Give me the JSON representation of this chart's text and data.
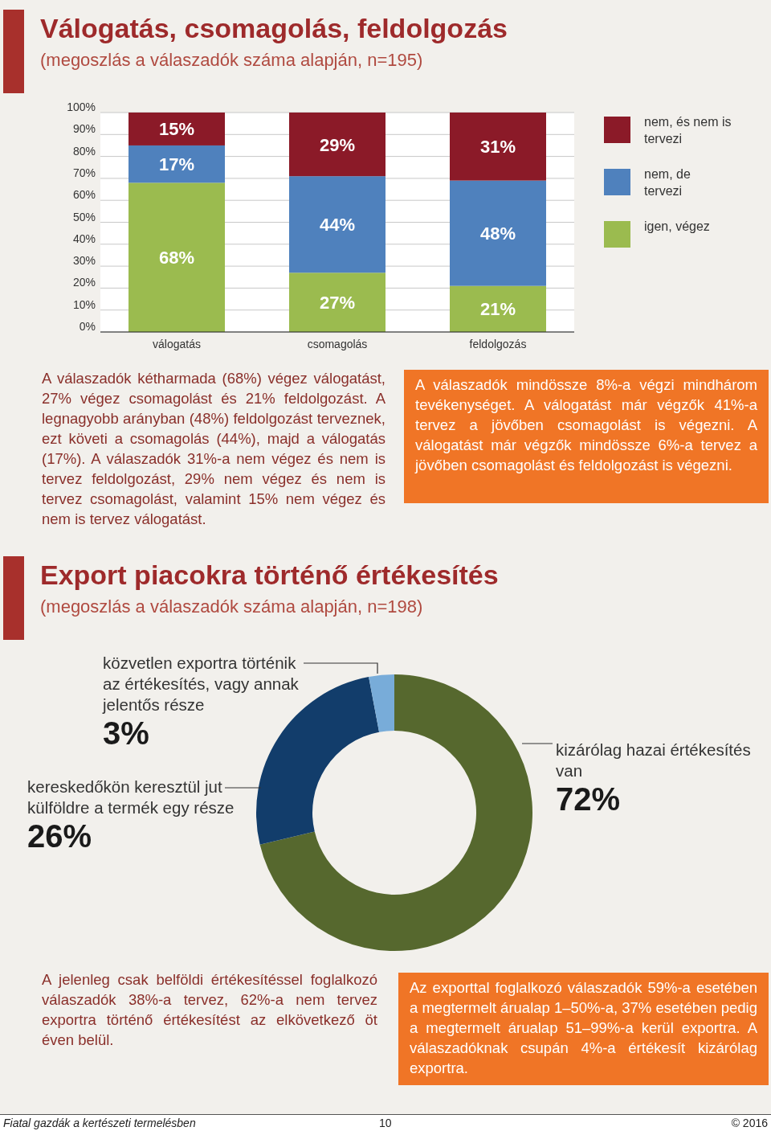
{
  "chart_data": [
    {
      "type": "bar",
      "title": "Válogatás, csomagolás, feldolgozás",
      "subtitle": "(megoszlás a válaszadók száma alapján, n=195)",
      "categories": [
        "válogatás",
        "csomagolás",
        "feldolgozás"
      ],
      "stacked": true,
      "series": [
        {
          "name": "igen, végez",
          "color": "#9bbb4f",
          "values": [
            68,
            27,
            21
          ],
          "value_labels": [
            "68%",
            "27%",
            "21%"
          ]
        },
        {
          "name": "nem, de tervezi",
          "color": "#4f81bd",
          "values": [
            17,
            44,
            48
          ],
          "value_labels": [
            "17%",
            "44%",
            "48%"
          ]
        },
        {
          "name": "nem, és nem is tervezi",
          "color": "#8b1a28",
          "values": [
            15,
            29,
            31
          ],
          "value_labels": [
            "15%",
            "29%",
            "31%"
          ]
        }
      ],
      "ylim": [
        0,
        100
      ],
      "yticks": [
        {
          "value": 0,
          "label": "0%"
        },
        {
          "value": 10,
          "label": "10%"
        },
        {
          "value": 20,
          "label": "20%"
        },
        {
          "value": 30,
          "label": "30%"
        },
        {
          "value": 40,
          "label": "40%"
        },
        {
          "value": 50,
          "label": "50%"
        },
        {
          "value": 60,
          "label": "60%"
        },
        {
          "value": 70,
          "label": "70%"
        },
        {
          "value": 80,
          "label": "80%"
        },
        {
          "value": 90,
          "label": "90%"
        },
        {
          "value": 100,
          "label": "100%"
        }
      ],
      "grid": "y",
      "legend": "right",
      "annotations": [
        "A válaszadók kétharmada (68%) végez válogatást, 27% végez csomagolást és 21% feldolgozást. A legnagyobb arányban (48%) feldolgozást terveznek, ezt követi a csomagolás (44%), majd a válogatás (17%). A válaszadók 31%-a nem végez és nem is tervez feldolgozást, 29% nem végez és nem is tervez csomagolást, valamint 15% nem végez és nem is tervez válogatást.",
        "A válaszadók mindössze 8%-a végzi mindhárom tevékenységet. A válogatást már végzők 41%-a tervez a jövőben csomagolást is végezni. A válogatást már végzők mindössze 6%-a tervez a jövőben csomagolást és feldolgozást is végezni."
      ]
    },
    {
      "type": "donut",
      "title": "Export piacokra történő értékesítés",
      "subtitle": "(megoszlás a válaszadók száma alapján, n=198)",
      "categories": [
        "kizárólag hazai értékesítés van",
        "kereskedőkön keresztül jut külföldre a termék egy része",
        "közvetlen exportra történik az értékesítés, vagy annak jelentős része"
      ],
      "values": [
        72,
        26,
        3
      ],
      "colors": [
        "#56682e",
        "#123d6b",
        "#78acd9"
      ],
      "value_labels": [
        "72%",
        "26%",
        "3%"
      ],
      "annotations": [
        "A jelenleg csak belföldi értékesítéssel foglalkozó válaszadók 38%-a tervez, 62%-a nem tervez exportra történő értékesítést az elkövetkező öt éven belül.",
        "Az exporttal foglalkozó válaszadók 59%-a esetében a megtermelt árualap 1–50%-a, 37% esetében pedig a megtermelt árualap 51–99%-a kerül exportra. A válaszadóknak csupán 4%-a értékesít kizárólag exportra.",
        "Fiatal gazdák a kertészeti termelésben",
        "10",
        "© 2016"
      ]
    }
  ]
}
